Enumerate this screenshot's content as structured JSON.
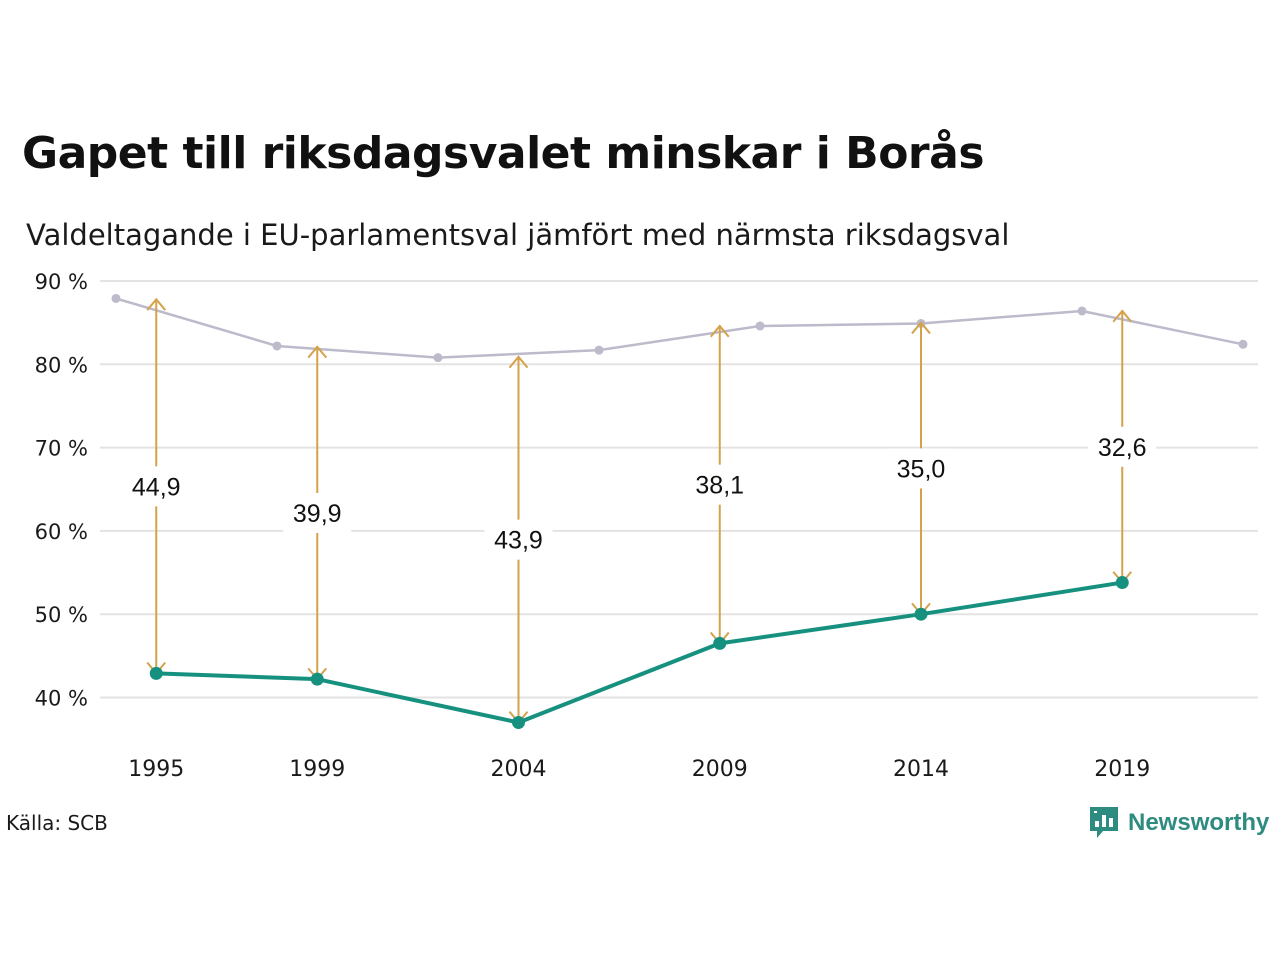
{
  "title": "Gapet till riksdagsvalet minskar i Borås",
  "subtitle": "Valdeltagande i EU-parlamentsval jämfört med närmsta riksdagsval",
  "source": "Källa: SCB",
  "logo": {
    "name": "Newsworthy",
    "icon": "newsworthy-bar-chart-icon"
  },
  "colors": {
    "eu": "#17917f",
    "riksdag": "#bcbacb",
    "gap": "#d4a24b",
    "grid": "#e3e3e3"
  },
  "chart_data": {
    "type": "line",
    "ylim": [
      34,
      90
    ],
    "y_ticks": [
      {
        "value": 40,
        "label": "40 %"
      },
      {
        "value": 50,
        "label": "50 %"
      },
      {
        "value": 60,
        "label": "60 %"
      },
      {
        "value": 70,
        "label": "70 %"
      },
      {
        "value": 80,
        "label": "80 %"
      },
      {
        "value": 90,
        "label": "90 %"
      }
    ],
    "x_ticks": [
      1995,
      1999,
      2004,
      2009,
      2014,
      2019
    ],
    "series": [
      {
        "points": [
          {
            "x": 1995,
            "y": 42.9
          },
          {
            "x": 1999,
            "y": 42.2
          },
          {
            "x": 2004,
            "y": 37.0
          },
          {
            "x": 2009,
            "y": 46.5
          },
          {
            "x": 2014,
            "y": 50.0
          },
          {
            "x": 2019,
            "y": 53.8
          }
        ]
      },
      {
        "points": [
          {
            "x": 1994,
            "y": 87.9
          },
          {
            "x": 1998,
            "y": 82.2
          },
          {
            "x": 2002,
            "y": 80.8
          },
          {
            "x": 2006,
            "y": 81.7
          },
          {
            "x": 2010,
            "y": 84.6
          },
          {
            "x": 2014,
            "y": 84.9
          },
          {
            "x": 2018,
            "y": 86.4
          },
          {
            "x": 2022,
            "y": 82.4
          }
        ]
      }
    ],
    "gaps": [
      {
        "year": 1995,
        "eu": 42.9,
        "riksdag": 87.8,
        "label": "44,9"
      },
      {
        "year": 1999,
        "eu": 42.2,
        "riksdag": 82.1,
        "label": "39,9"
      },
      {
        "year": 2004,
        "eu": 37.0,
        "riksdag": 80.9,
        "label": "43,9"
      },
      {
        "year": 2009,
        "eu": 46.5,
        "riksdag": 84.6,
        "label": "38,1"
      },
      {
        "year": 2014,
        "eu": 50.0,
        "riksdag": 85.0,
        "label": "35,0"
      },
      {
        "year": 2019,
        "eu": 53.8,
        "riksdag": 86.4,
        "label": "32,6"
      }
    ]
  }
}
